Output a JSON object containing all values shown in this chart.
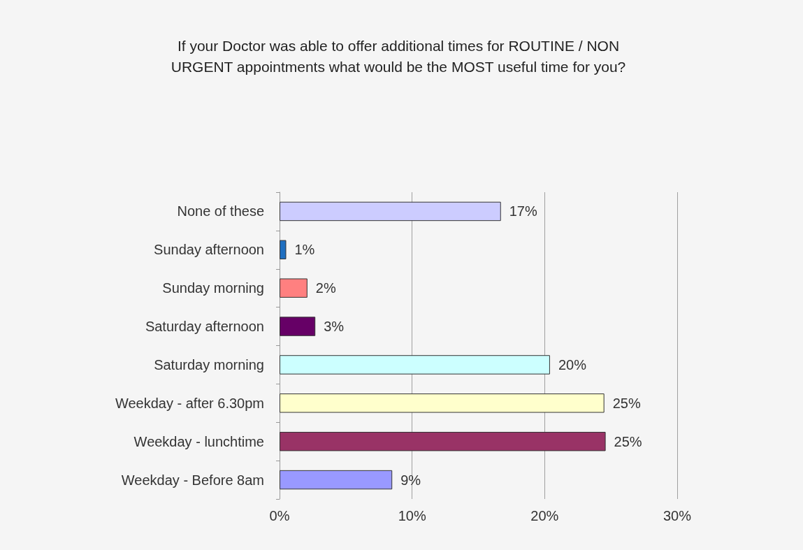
{
  "chart_data": {
    "type": "bar",
    "orientation": "horizontal",
    "title": "If your Doctor was able to offer additional times for ROUTINE / NON\nURGENT appointments what would be the MOST useful time for you?",
    "categories": [
      "None of these",
      "Sunday afternoon",
      "Sunday morning",
      "Saturday afternoon",
      "Saturday morning",
      "Weekday - after 6.30pm",
      "Weekday - lunchtime",
      "Weekday - Before 8am"
    ],
    "values": [
      16.7,
      0.5,
      2.1,
      2.7,
      20.4,
      24.5,
      24.6,
      8.5
    ],
    "value_labels": [
      "17%",
      "1%",
      "2%",
      "3%",
      "20%",
      "25%",
      "25%",
      "9%"
    ],
    "colors": [
      "#ccccff",
      "#1f6fc0",
      "#ff8080",
      "#660066",
      "#ccffff",
      "#ffffcc",
      "#993366",
      "#9999ff"
    ],
    "xlim": [
      0,
      30
    ],
    "xticks": [
      {
        "value": 0,
        "label": "0%"
      },
      {
        "value": 10,
        "label": "10%"
      },
      {
        "value": 20,
        "label": "20%"
      },
      {
        "value": 30,
        "label": "30%"
      }
    ],
    "grid": "x"
  }
}
